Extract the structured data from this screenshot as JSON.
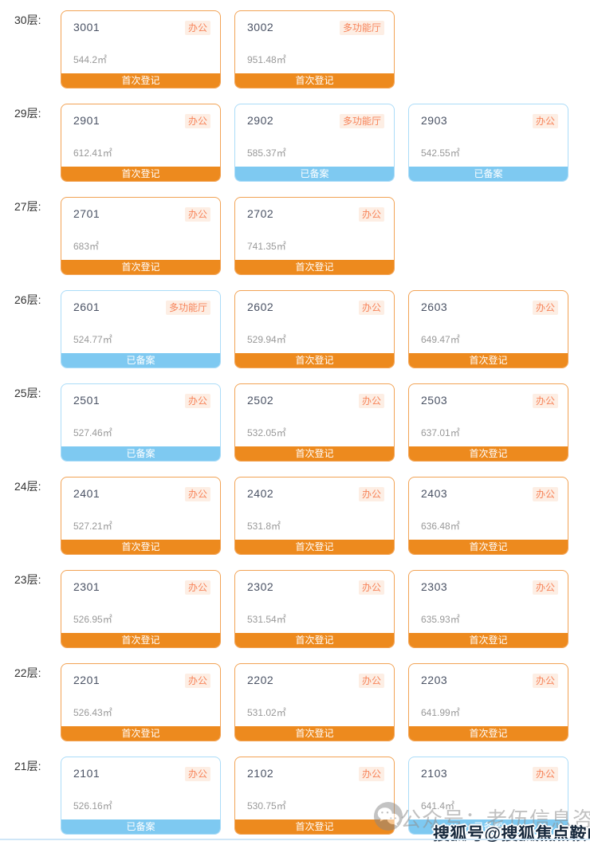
{
  "colors": {
    "page_bg": "#ffffff",
    "orange_bar": "#ED8A1E",
    "orange_border": "#F2A355",
    "blue_bar": "#7EC9F1",
    "blue_border": "#ABDCF8",
    "type_text": "#F7845A",
    "type_bg": "#FDEEE4",
    "number_text": "#4A5264",
    "area_text": "#999999",
    "floor_label_text": "#333333",
    "status_text": "#FFFFFF",
    "bottom_line": "#CFE6F7"
  },
  "status_legend": {
    "orange": "首次登记",
    "blue": "已备案"
  },
  "floors": [
    {
      "label": "30层:",
      "units": [
        {
          "number": "3001",
          "type": "办公",
          "area": "544.2㎡",
          "status": "首次登记",
          "state": "orange"
        },
        {
          "number": "3002",
          "type": "多功能厅",
          "area": "951.48㎡",
          "status": "首次登记",
          "state": "orange"
        }
      ]
    },
    {
      "label": "29层:",
      "units": [
        {
          "number": "2901",
          "type": "办公",
          "area": "612.41㎡",
          "status": "首次登记",
          "state": "orange"
        },
        {
          "number": "2902",
          "type": "多功能厅",
          "area": "585.37㎡",
          "status": "已备案",
          "state": "blue"
        },
        {
          "number": "2903",
          "type": "办公",
          "area": "542.55㎡",
          "status": "已备案",
          "state": "blue"
        }
      ]
    },
    {
      "label": "27层:",
      "units": [
        {
          "number": "2701",
          "type": "办公",
          "area": "683㎡",
          "status": "首次登记",
          "state": "orange"
        },
        {
          "number": "2702",
          "type": "办公",
          "area": "741.35㎡",
          "status": "首次登记",
          "state": "orange"
        }
      ]
    },
    {
      "label": "26层:",
      "units": [
        {
          "number": "2601",
          "type": "多功能厅",
          "area": "524.77㎡",
          "status": "已备案",
          "state": "blue"
        },
        {
          "number": "2602",
          "type": "办公",
          "area": "529.94㎡",
          "status": "首次登记",
          "state": "orange"
        },
        {
          "number": "2603",
          "type": "办公",
          "area": "649.47㎡",
          "status": "首次登记",
          "state": "orange"
        }
      ]
    },
    {
      "label": "25层:",
      "units": [
        {
          "number": "2501",
          "type": "办公",
          "area": "527.46㎡",
          "status": "已备案",
          "state": "blue"
        },
        {
          "number": "2502",
          "type": "办公",
          "area": "532.05㎡",
          "status": "首次登记",
          "state": "orange"
        },
        {
          "number": "2503",
          "type": "办公",
          "area": "637.01㎡",
          "status": "首次登记",
          "state": "orange"
        }
      ]
    },
    {
      "label": "24层:",
      "units": [
        {
          "number": "2401",
          "type": "办公",
          "area": "527.21㎡",
          "status": "首次登记",
          "state": "orange"
        },
        {
          "number": "2402",
          "type": "办公",
          "area": "531.8㎡",
          "status": "首次登记",
          "state": "orange"
        },
        {
          "number": "2403",
          "type": "办公",
          "area": "636.48㎡",
          "status": "首次登记",
          "state": "orange"
        }
      ]
    },
    {
      "label": "23层:",
      "units": [
        {
          "number": "2301",
          "type": "办公",
          "area": "526.95㎡",
          "status": "首次登记",
          "state": "orange"
        },
        {
          "number": "2302",
          "type": "办公",
          "area": "531.54㎡",
          "status": "首次登记",
          "state": "orange"
        },
        {
          "number": "2303",
          "type": "办公",
          "area": "635.93㎡",
          "status": "首次登记",
          "state": "orange"
        }
      ]
    },
    {
      "label": "22层:",
      "units": [
        {
          "number": "2201",
          "type": "办公",
          "area": "526.43㎡",
          "status": "首次登记",
          "state": "orange"
        },
        {
          "number": "2202",
          "type": "办公",
          "area": "531.02㎡",
          "status": "首次登记",
          "state": "orange"
        },
        {
          "number": "2203",
          "type": "办公",
          "area": "641.99㎡",
          "status": "首次登记",
          "state": "orange"
        }
      ]
    },
    {
      "label": "21层:",
      "units": [
        {
          "number": "2101",
          "type": "办公",
          "area": "526.16㎡",
          "status": "已备案",
          "state": "blue"
        },
        {
          "number": "2102",
          "type": "办公",
          "area": "530.75㎡",
          "status": "首次登记",
          "state": "orange"
        },
        {
          "number": "2103",
          "type": "办公",
          "area": "641.4㎡",
          "status": "已备案",
          "state": "blue"
        }
      ]
    }
  ],
  "watermarks": {
    "wechat_icon": "wechat-logo-icon",
    "wechat_text": "公众号：老伍信息咨询",
    "sohu_text": "搜狐号@搜狐焦点鞍山站"
  }
}
